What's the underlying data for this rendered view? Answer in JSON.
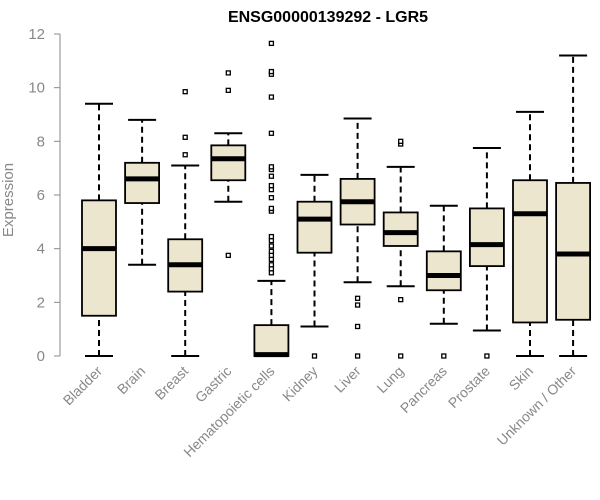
{
  "chart_data": {
    "type": "box",
    "title": "ENSG00000139292 - LGR5",
    "xlabel": "",
    "ylabel": "Expression",
    "ylim": [
      0,
      12
    ],
    "yticks": [
      0,
      2,
      4,
      6,
      8,
      10,
      12
    ],
    "grid": false,
    "box_fill": "#ede6ce",
    "box_stroke": "#000000",
    "categories": [
      "Bladder",
      "Brain",
      "Breast",
      "Gastric",
      "Hematopoietic cells",
      "Kidney",
      "Liver",
      "Lung",
      "Pancreas",
      "Prostate",
      "Skin",
      "Unknown / Other"
    ],
    "boxes": [
      {
        "min": 0,
        "q1": 1.5,
        "median": 4.0,
        "q3": 5.8,
        "max": 9.4,
        "outliers": []
      },
      {
        "min": 3.4,
        "q1": 5.7,
        "median": 6.6,
        "q3": 7.2,
        "max": 8.8,
        "outliers": []
      },
      {
        "min": 0,
        "q1": 2.4,
        "median": 3.4,
        "q3": 4.35,
        "max": 7.1,
        "outliers": [
          7.5,
          8.15,
          9.85
        ]
      },
      {
        "min": 5.75,
        "q1": 6.55,
        "median": 7.35,
        "q3": 7.85,
        "max": 8.3,
        "outliers": [
          3.75,
          9.9,
          10.55
        ]
      },
      {
        "min": 0,
        "q1": 0,
        "median": 0.05,
        "q3": 1.15,
        "max": 2.8,
        "outliers": [
          3.1,
          3.25,
          3.4,
          3.6,
          3.75,
          3.9,
          4.1,
          4.3,
          4.45,
          5.4,
          5.5,
          5.9,
          6.2,
          6.35,
          6.7,
          6.95,
          7.05,
          8.3,
          9.65,
          10.5,
          10.6,
          11.65
        ]
      },
      {
        "min": 1.1,
        "q1": 3.85,
        "median": 5.1,
        "q3": 5.75,
        "max": 6.75,
        "outliers": [
          0
        ]
      },
      {
        "min": 2.75,
        "q1": 4.9,
        "median": 5.75,
        "q3": 6.6,
        "max": 8.85,
        "outliers": [
          0,
          1.1,
          1.9,
          2.15
        ]
      },
      {
        "min": 2.6,
        "q1": 4.1,
        "median": 4.6,
        "q3": 5.35,
        "max": 7.05,
        "outliers": [
          0,
          2.1,
          7.9,
          8.0
        ]
      },
      {
        "min": 1.2,
        "q1": 2.45,
        "median": 3.0,
        "q3": 3.9,
        "max": 5.6,
        "outliers": [
          0
        ]
      },
      {
        "min": 0.95,
        "q1": 3.35,
        "median": 4.15,
        "q3": 5.5,
        "max": 7.75,
        "outliers": [
          0
        ]
      },
      {
        "min": 0,
        "q1": 1.25,
        "median": 5.3,
        "q3": 6.55,
        "max": 9.1,
        "outliers": []
      },
      {
        "min": 0,
        "q1": 1.35,
        "median": 3.8,
        "q3": 6.45,
        "max": 11.2,
        "outliers": []
      }
    ]
  }
}
